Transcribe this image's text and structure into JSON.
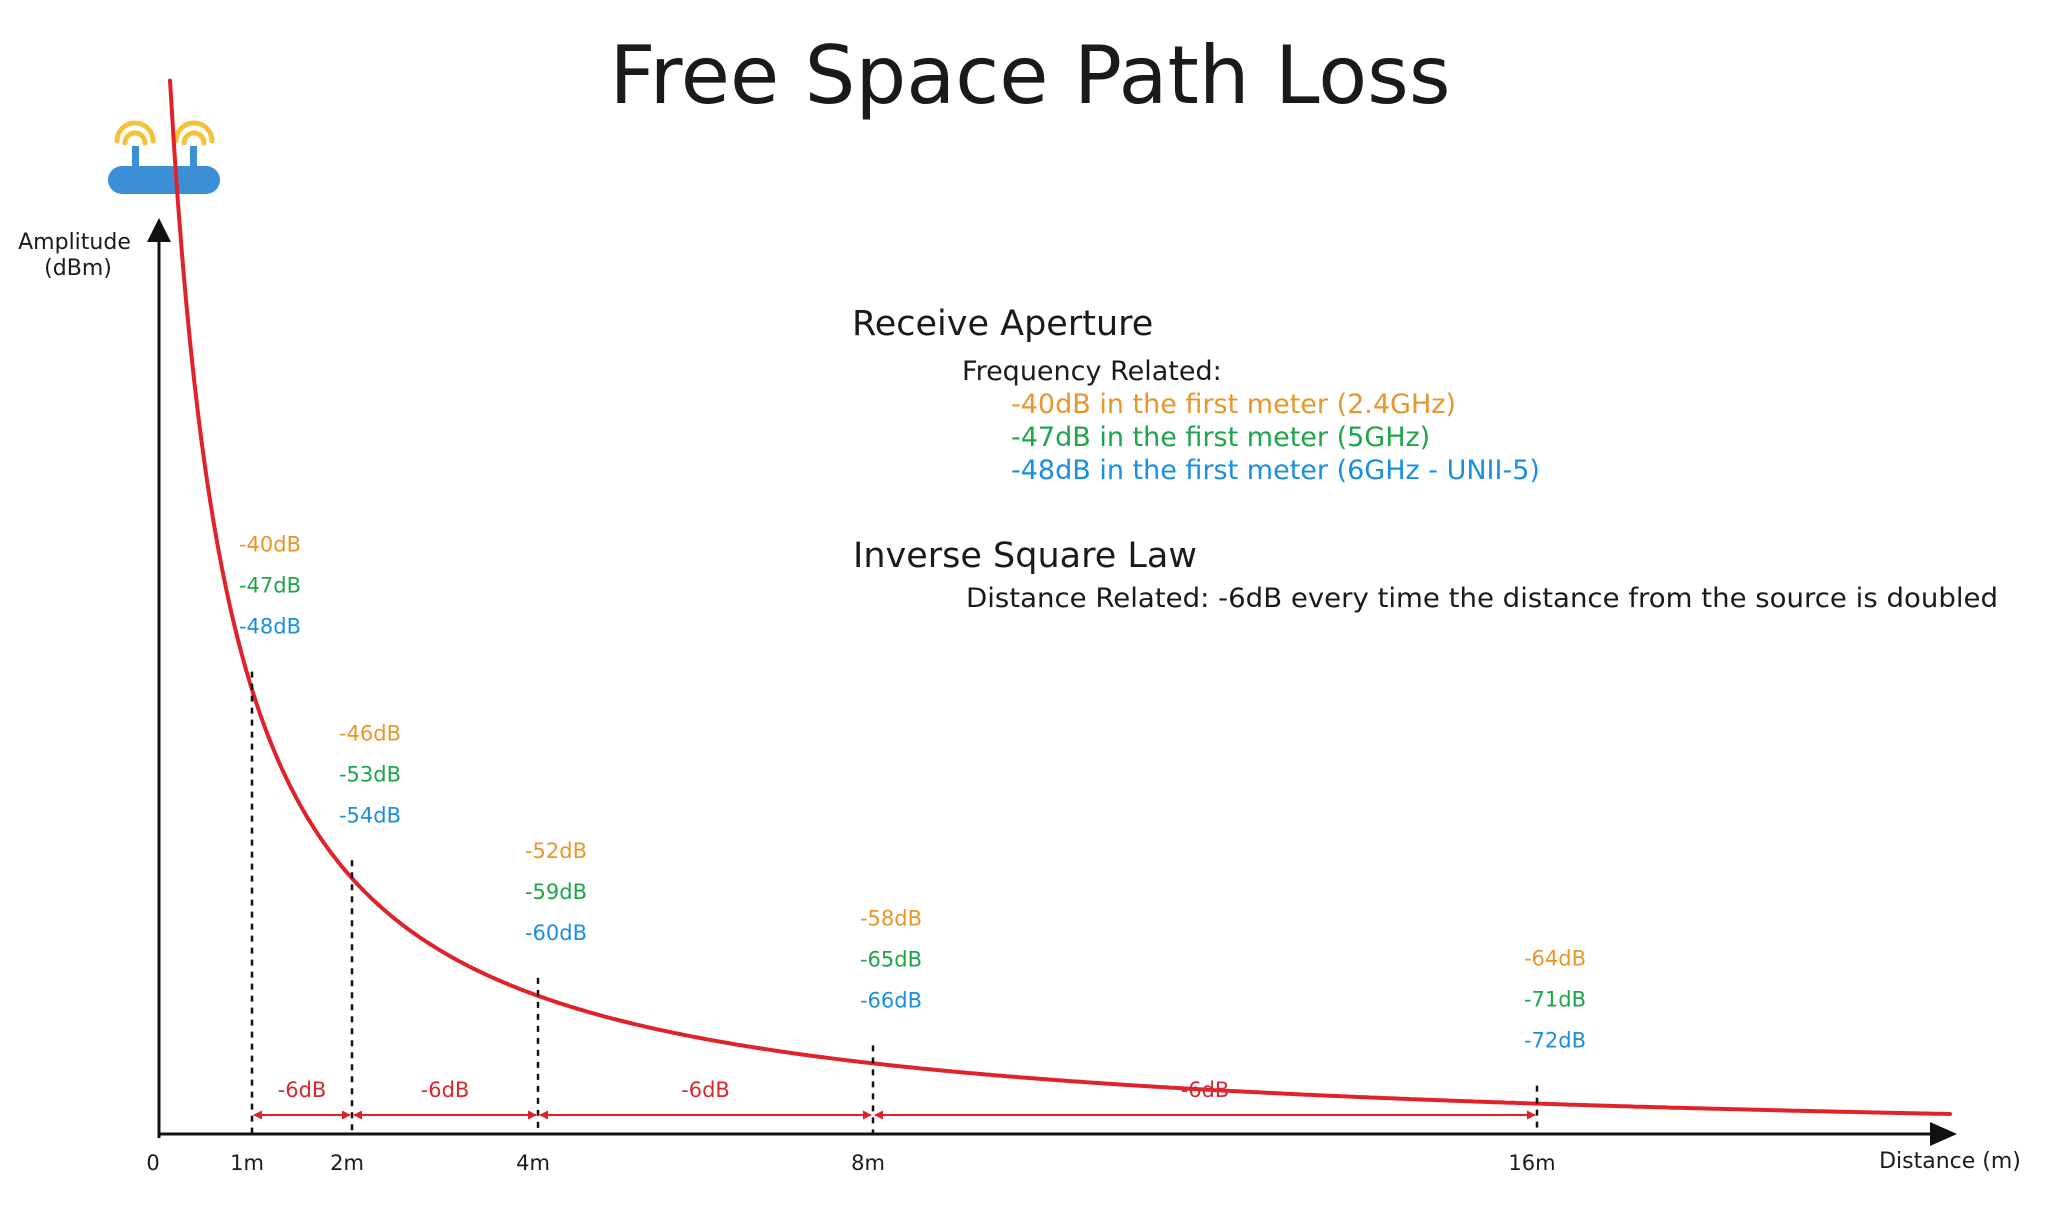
{
  "title": "Free Space Path Loss",
  "y_axis_label": [
    "Amplitude",
    "(dBm)"
  ],
  "x_axis_label": "Distance (m)",
  "x_ticks": [
    {
      "label": "0",
      "d": 0
    },
    {
      "label": "1m",
      "d": 1
    },
    {
      "label": "2m",
      "d": 2
    },
    {
      "label": "4m",
      "d": 4
    },
    {
      "label": "8m",
      "d": 8
    },
    {
      "label": "16m",
      "d": 16
    }
  ],
  "colors": {
    "curve": "#e0232b",
    "ghz24": "#e8962b",
    "ghz5": "#1ea54a",
    "ghz6": "#1a8fe0",
    "axis": "#111111",
    "router": "#3a8fd6",
    "wifi": "#f2c33a"
  },
  "icons": {
    "source": "wifi-router-icon"
  },
  "receive_aperture": {
    "heading": "Receive Aperture",
    "subheading": "Frequency Related:",
    "lines": [
      {
        "text": "-40dB in the first meter (2.4GHz)",
        "color": "#e8962b"
      },
      {
        "text": "-47dB in the first meter (5GHz)",
        "color": "#1ea54a"
      },
      {
        "text": "-48dB in the first meter (6GHz - UNII-5)",
        "color": "#1a8fe0"
      }
    ]
  },
  "inverse_square_law": {
    "heading": "Inverse Square Law",
    "subheading": "Distance Related: -6dB every time the distance from the source is doubled"
  },
  "points": [
    {
      "d": 1,
      "values": [
        "-40dB",
        "-47dB",
        "-48dB"
      ]
    },
    {
      "d": 2,
      "values": [
        "-46dB",
        "-53dB",
        "-54dB"
      ]
    },
    {
      "d": 4,
      "values": [
        "-52dB",
        "-59dB",
        "-60dB"
      ]
    },
    {
      "d": 8,
      "values": [
        "-58dB",
        "-65dB",
        "-66dB"
      ]
    },
    {
      "d": 16,
      "values": [
        "-64dB",
        "-71dB",
        "-72dB"
      ]
    }
  ],
  "segments": [
    {
      "from": 1,
      "to": 2,
      "label": "-6dB"
    },
    {
      "from": 2,
      "to": 4,
      "label": "-6dB"
    },
    {
      "from": 4,
      "to": 8,
      "label": "-6dB"
    },
    {
      "from": 8,
      "to": 16,
      "label": "-6dB"
    }
  ]
}
